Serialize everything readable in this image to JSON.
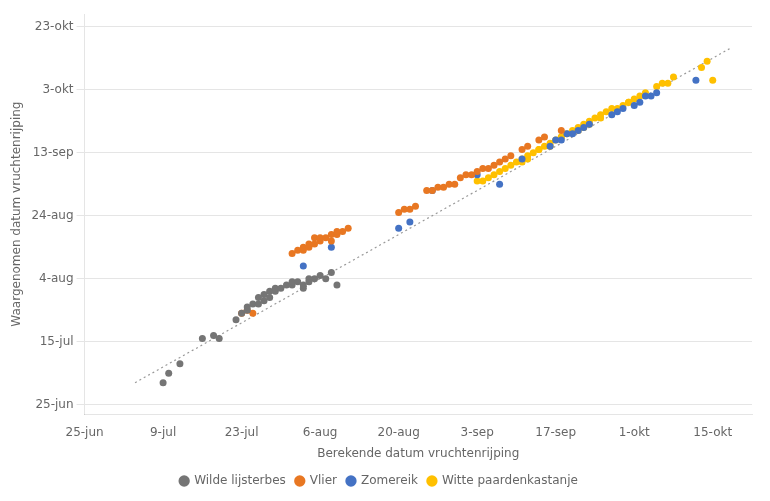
{
  "chart_data": {
    "type": "scatter",
    "xlabel": "Berekende datum vruchtenrijping",
    "ylabel": "Waargenomen datum vruchtenrijping",
    "xlim": [
      176,
      295
    ],
    "xticks": [
      {
        "value": 176,
        "label": "25-jun"
      },
      {
        "value": 190,
        "label": "9-jul"
      },
      {
        "value": 204,
        "label": "23-jul"
      },
      {
        "value": 218,
        "label": "6-aug"
      },
      {
        "value": 232,
        "label": "20-aug"
      },
      {
        "value": 246,
        "label": "3-sep"
      },
      {
        "value": 260,
        "label": "17-sep"
      },
      {
        "value": 274,
        "label": "1-okt"
      },
      {
        "value": 288,
        "label": "15-okt"
      }
    ],
    "ylim": [
      173,
      300
    ],
    "yticks": [
      {
        "value": 176,
        "label": "25-jun"
      },
      {
        "value": 196,
        "label": "15-jul"
      },
      {
        "value": 216,
        "label": "4-aug"
      },
      {
        "value": 236,
        "label": "24-aug"
      },
      {
        "value": 256,
        "label": "13-sep"
      },
      {
        "value": 276,
        "label": "3-okt"
      },
      {
        "value": 296,
        "label": "23-okt"
      }
    ],
    "grid": "y",
    "legend": "bottom",
    "series": [
      {
        "name": "Wilde lijsterbes",
        "color": "#757575",
        "marker": "circle",
        "x": [
          190,
          191,
          193,
          197,
          199,
          200,
          203,
          204,
          205,
          205,
          206,
          207,
          207,
          208,
          208,
          209,
          209,
          210,
          210,
          211,
          212,
          213,
          213,
          214,
          215,
          215,
          216,
          216,
          217,
          218,
          219,
          220,
          221
        ],
        "values": [
          183,
          186,
          189,
          197,
          198,
          197,
          203,
          205,
          206,
          207,
          208,
          208,
          210,
          209,
          211,
          210,
          212,
          212,
          213,
          213,
          214,
          214,
          215,
          215,
          213,
          214,
          215,
          216,
          216,
          217,
          216,
          218,
          214
        ]
      },
      {
        "name": "Vlier",
        "color": "#E87722",
        "marker": "circle",
        "x": [
          204,
          205,
          206,
          213,
          214,
          215,
          215,
          216,
          216,
          217,
          217,
          218,
          218,
          219,
          220,
          220,
          221,
          221,
          222,
          223,
          232,
          233,
          234,
          235,
          237,
          238,
          239,
          240,
          241,
          242,
          243,
          244,
          245,
          246,
          247,
          248,
          249,
          250,
          251,
          252,
          254,
          255,
          257,
          258,
          261
        ],
        "values": [
          205,
          206,
          205,
          224,
          225,
          225,
          226,
          226,
          227,
          227,
          229,
          228,
          229,
          229,
          228,
          230,
          230,
          231,
          231,
          232,
          237,
          238,
          238,
          239,
          244,
          244,
          245,
          245,
          246,
          246,
          248,
          249,
          249,
          250,
          251,
          251,
          252,
          253,
          254,
          255,
          257,
          258,
          260,
          261,
          263
        ]
      },
      {
        "name": "Zomereik",
        "color": "#4472C4",
        "marker": "circle",
        "x": [
          215,
          220,
          232,
          234,
          238,
          246,
          250,
          254,
          259,
          260,
          261,
          262,
          263,
          264,
          265,
          266,
          270,
          271,
          272,
          274,
          275,
          276,
          277,
          278,
          285
        ],
        "values": [
          220,
          226,
          232,
          234,
          244,
          249,
          246,
          254,
          258,
          260,
          260,
          262,
          262,
          263,
          264,
          265,
          268,
          269,
          270,
          271,
          272,
          274,
          274,
          275,
          279
        ]
      },
      {
        "name": "Witte paardenkastanje",
        "color": "#FFC000",
        "marker": "circle",
        "x": [
          246,
          247,
          248,
          249,
          250,
          251,
          252,
          253,
          254,
          254,
          255,
          255,
          256,
          257,
          257,
          258,
          259,
          259,
          260,
          261,
          261,
          262,
          263,
          264,
          264,
          265,
          265,
          266,
          266,
          267,
          268,
          268,
          269,
          270,
          271,
          272,
          273,
          273,
          274,
          275,
          276,
          278,
          279,
          280,
          281,
          286,
          287,
          288
        ],
        "values": [
          247,
          247,
          248,
          249,
          250,
          251,
          252,
          253,
          253,
          254,
          254,
          255,
          256,
          257,
          257,
          258,
          258,
          259,
          260,
          261,
          261,
          262,
          263,
          263,
          264,
          264,
          265,
          265,
          266,
          267,
          267,
          268,
          269,
          270,
          270,
          271,
          272,
          272,
          273,
          274,
          275,
          277,
          278,
          278,
          280,
          283,
          285,
          279
        ]
      },
      {
        "type": "line",
        "line_style": "dotted",
        "color": "#999999",
        "x": [
          185,
          291
        ],
        "values": [
          183,
          289
        ]
      }
    ]
  }
}
